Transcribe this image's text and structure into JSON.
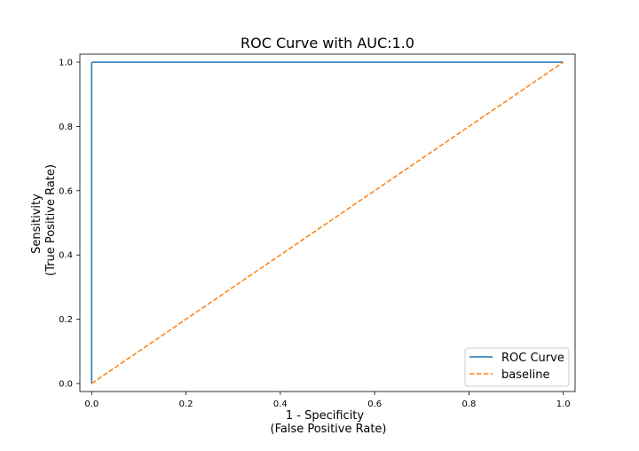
{
  "chart_data": {
    "type": "line",
    "title": "ROC Curve with AUC:1.0",
    "xlabel_lines": [
      "1 - Specificity",
      "(False Positive Rate)"
    ],
    "ylabel_lines": [
      "Sensitivity",
      "(True Positive Rate)"
    ],
    "xlim": [
      -0.025,
      1.025
    ],
    "ylim": [
      -0.025,
      1.025
    ],
    "xticks": [
      0.0,
      0.2,
      0.4,
      0.6,
      0.8,
      1.0
    ],
    "xtick_labels": [
      "0.0",
      "0.2",
      "0.4",
      "0.6",
      "0.8",
      "1.0"
    ],
    "yticks": [
      0.0,
      0.2,
      0.4,
      0.6,
      0.8,
      1.0
    ],
    "ytick_labels": [
      "0.0",
      "0.2",
      "0.4",
      "0.6",
      "0.8",
      "1.0"
    ],
    "grid": false,
    "legend_position": "lower-right",
    "series": [
      {
        "name": "ROC Curve",
        "color": "#1f77b4",
        "style": "solid",
        "x": [
          0.0,
          0.0,
          0.0005,
          0.002,
          0.005,
          0.02,
          1.0
        ],
        "y": [
          0.0,
          0.998,
          0.999,
          0.9995,
          1.0,
          1.0,
          1.0
        ]
      },
      {
        "name": "baseline",
        "color": "#ff7f0e",
        "style": "dashed",
        "x": [
          0.0,
          1.0
        ],
        "y": [
          0.0,
          1.0
        ]
      }
    ]
  }
}
